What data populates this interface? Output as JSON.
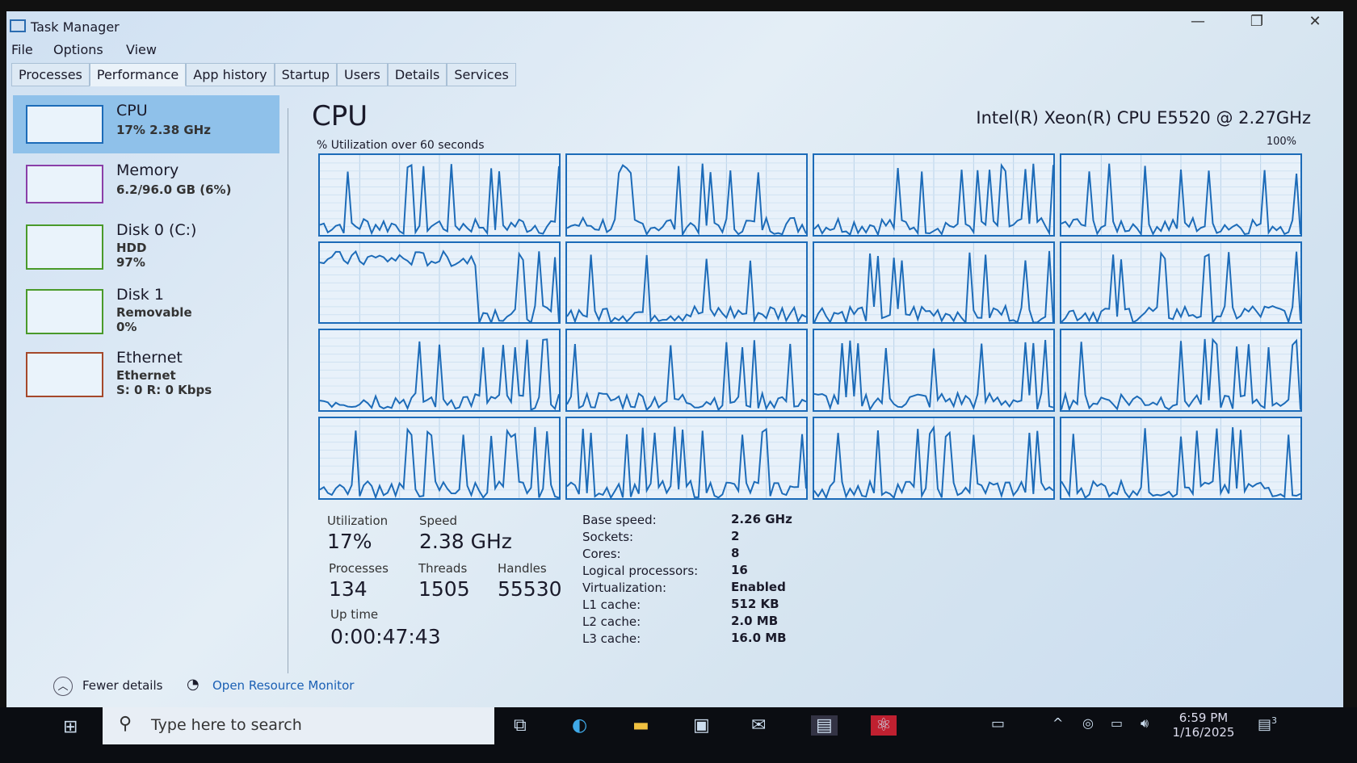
{
  "window": {
    "title": "Task Manager",
    "minimize": "—",
    "maximize": "❐",
    "close": "✕"
  },
  "menu": [
    "File",
    "Options",
    "View"
  ],
  "tabs": [
    "Processes",
    "Performance",
    "App history",
    "Startup",
    "Users",
    "Details",
    "Services"
  ],
  "active_tab": "Performance",
  "sidebar": [
    {
      "title": "CPU",
      "line1": "17% 2.38 GHz"
    },
    {
      "title": "Memory",
      "line1": "6.2/96.0 GB (6%)"
    },
    {
      "title": "Disk 0 (C:)",
      "line1": "HDD",
      "line2": "97%"
    },
    {
      "title": "Disk 1",
      "line1": "Removable",
      "line2": "0%"
    },
    {
      "title": "Ethernet",
      "line1": "Ethernet",
      "line2": "S: 0 R: 0 Kbps"
    }
  ],
  "main": {
    "title": "CPU",
    "model": "Intel(R) Xeon(R) CPU E5520 @ 2.27GHz",
    "graph_label": "% Utilization over 60 seconds",
    "graph_max": "100%",
    "stats": {
      "utilization_label": "Utilization",
      "utilization": "17%",
      "speed_label": "Speed",
      "speed": "2.38 GHz",
      "processes_label": "Processes",
      "processes": "134",
      "threads_label": "Threads",
      "threads": "1505",
      "handles_label": "Handles",
      "handles": "55530",
      "uptime_label": "Up time",
      "uptime": "0:00:47:43"
    },
    "specs": [
      [
        "Base speed:",
        "2.26 GHz"
      ],
      [
        "Sockets:",
        "2"
      ],
      [
        "Cores:",
        "8"
      ],
      [
        "Logical processors:",
        "16"
      ],
      [
        "Virtualization:",
        "Enabled"
      ],
      [
        "L1 cache:",
        "512 KB"
      ],
      [
        "L2 cache:",
        "2.0 MB"
      ],
      [
        "L3 cache:",
        "16.0 MB"
      ]
    ]
  },
  "footer": {
    "fewer": "Fewer details",
    "monitor": "Open Resource Monitor"
  },
  "taskbar": {
    "search_placeholder": "Type here to search",
    "time": "6:59 PM",
    "date": "1/16/2025",
    "notifications": "3"
  },
  "colors": {
    "graph": "#1c6bb8",
    "selected": "#8fc1ea"
  }
}
